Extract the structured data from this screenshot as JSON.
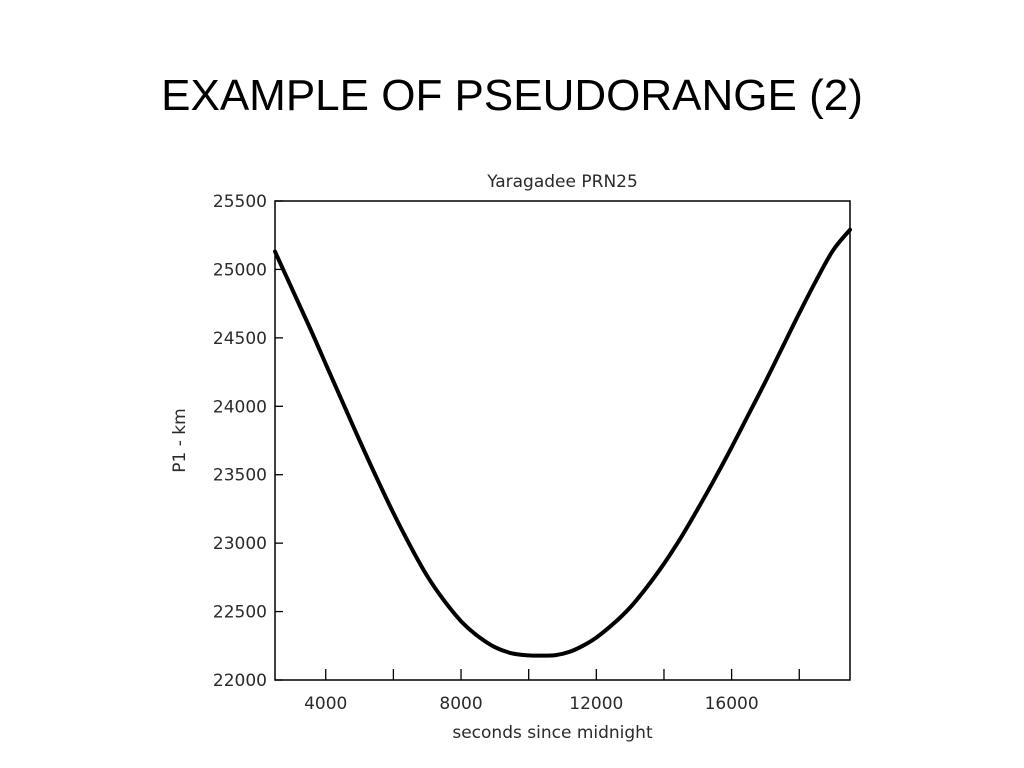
{
  "slide": {
    "title": "EXAMPLE OF PSEUDORANGE (2)"
  },
  "chart_data": {
    "type": "line",
    "title": "Yaragadee PRN25",
    "xlabel": "seconds since midnight",
    "ylabel": "P1 - km",
    "xlim": [
      2500,
      19500
    ],
    "ylim": [
      22000,
      25500
    ],
    "x_ticks": [
      4000,
      8000,
      12000,
      16000
    ],
    "x_minor_ticks": [
      6000,
      10000,
      14000,
      18000
    ],
    "y_ticks": [
      22000,
      22500,
      23000,
      23500,
      24000,
      24500,
      25000,
      25500
    ],
    "grid": false,
    "legend": "none",
    "line_color": "#000000",
    "series": [
      {
        "x": [
          2500,
          3000,
          3500,
          4000,
          4500,
          5000,
          5500,
          6000,
          6500,
          7000,
          7500,
          8000,
          8500,
          9000,
          9500,
          10000,
          10400,
          10800,
          11200,
          11600,
          12000,
          12500,
          13000,
          13500,
          14000,
          14500,
          15000,
          15500,
          16000,
          16500,
          17000,
          17500,
          18000,
          18500,
          19000,
          19500
        ],
        "y": [
          25130,
          24860,
          24590,
          24310,
          24030,
          23750,
          23480,
          23220,
          22980,
          22760,
          22580,
          22430,
          22320,
          22240,
          22195,
          22180,
          22178,
          22182,
          22205,
          22250,
          22310,
          22410,
          22530,
          22680,
          22850,
          23040,
          23250,
          23470,
          23700,
          23940,
          24180,
          24430,
          24680,
          24920,
          25140,
          25290
        ]
      }
    ]
  }
}
